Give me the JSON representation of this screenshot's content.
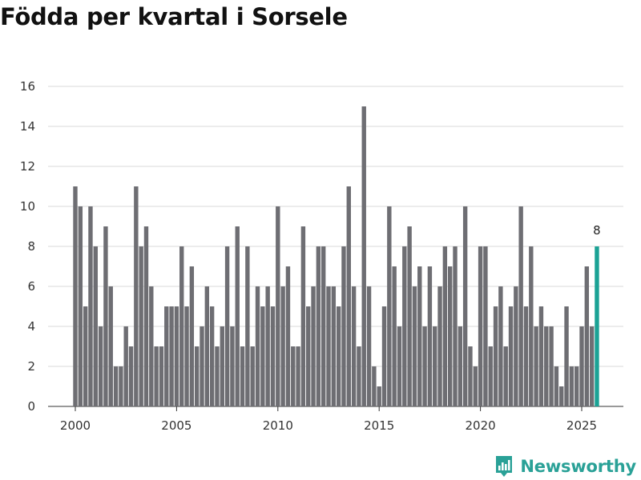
{
  "title": "Födda per kvartal i Sorsele",
  "brand": {
    "name": "Newsworthy",
    "icon": "newsworthy-logo-icon"
  },
  "colors": {
    "bar": "#6e6e73",
    "highlight": "#1ba295",
    "grid": "#d9d9d9",
    "brand": "#2aa197"
  },
  "chart_data": {
    "type": "bar",
    "title": "Födda per kvartal i Sorsele",
    "xlabel": "",
    "ylabel": "",
    "ylim": [
      0,
      16
    ],
    "yticks": [
      0,
      2,
      4,
      6,
      8,
      10,
      12,
      14,
      16
    ],
    "xticks": [
      "2000",
      "2005",
      "2010",
      "2015",
      "2020",
      "2025"
    ],
    "start_year": 2000,
    "frequency": "quarter",
    "grid": true,
    "highlight_last": true,
    "last_value_label": "8",
    "values": [
      11,
      10,
      5,
      10,
      8,
      4,
      9,
      6,
      2,
      2,
      4,
      3,
      11,
      8,
      9,
      6,
      3,
      3,
      5,
      5,
      5,
      8,
      5,
      7,
      3,
      4,
      6,
      5,
      3,
      4,
      8,
      4,
      9,
      3,
      8,
      3,
      6,
      5,
      6,
      5,
      10,
      6,
      7,
      3,
      3,
      9,
      5,
      6,
      8,
      8,
      6,
      6,
      5,
      8,
      11,
      6,
      3,
      15,
      6,
      2,
      1,
      5,
      10,
      7,
      4,
      8,
      9,
      6,
      7,
      4,
      7,
      4,
      6,
      8,
      7,
      8,
      4,
      10,
      3,
      2,
      8,
      8,
      3,
      5,
      6,
      3,
      5,
      6,
      10,
      5,
      8,
      4,
      5,
      4,
      4,
      2,
      1,
      5,
      2,
      2,
      4,
      7,
      4,
      8
    ]
  }
}
